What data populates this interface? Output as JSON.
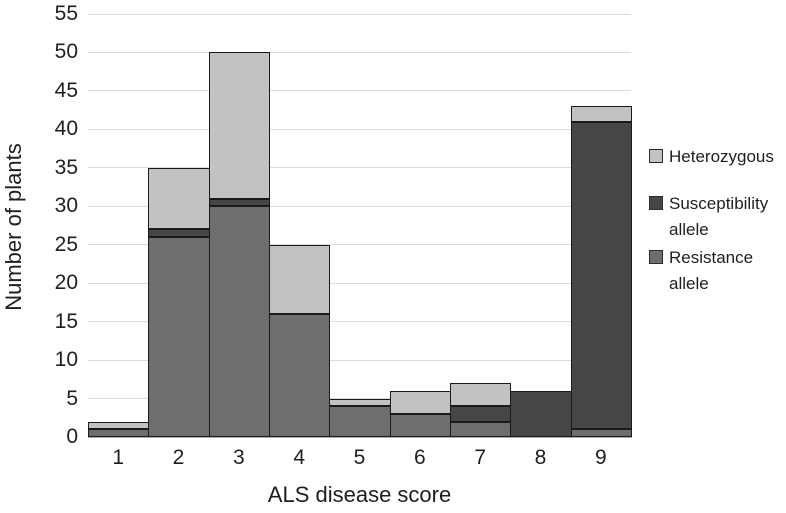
{
  "chart_data": {
    "type": "bar",
    "stacked": true,
    "title": "",
    "xlabel": "ALS disease score",
    "ylabel": "Number of plants",
    "categories": [
      "1",
      "2",
      "3",
      "4",
      "5",
      "6",
      "7",
      "8",
      "9"
    ],
    "series": [
      {
        "name": "Resistance allele",
        "color": "#6e6e6e",
        "values": [
          1,
          26,
          30,
          16,
          4,
          3,
          2,
          0,
          1
        ]
      },
      {
        "name": "Susceptibility allele",
        "color": "#464646",
        "values": [
          0,
          1,
          1,
          0,
          0,
          0,
          2,
          6,
          40
        ]
      },
      {
        "name": "Heterozygous",
        "color": "#c2c2c2",
        "values": [
          1,
          8,
          19,
          9,
          1,
          3,
          3,
          0,
          2
        ]
      }
    ],
    "totals": [
      2,
      35,
      50,
      25,
      5,
      6,
      7,
      6,
      43
    ],
    "ylim": [
      0,
      55
    ],
    "ytick_step": 5,
    "yticks": [
      "0",
      "5",
      "10",
      "15",
      "20",
      "25",
      "30",
      "35",
      "40",
      "45",
      "50",
      "55"
    ],
    "grid": true,
    "legend_position": "right",
    "legend": [
      {
        "label": "Heterozygous",
        "color": "#c2c2c2"
      },
      {
        "label": "Susceptibility allele",
        "color": "#464646"
      },
      {
        "label": "Resistance allele",
        "color": "#6e6e6e"
      }
    ],
    "colors": {
      "gridline": "#dcdcdc",
      "axis_line": "#b0b0b0",
      "bar_border": "#1a1a1a",
      "text": "#1f1f1f"
    }
  }
}
